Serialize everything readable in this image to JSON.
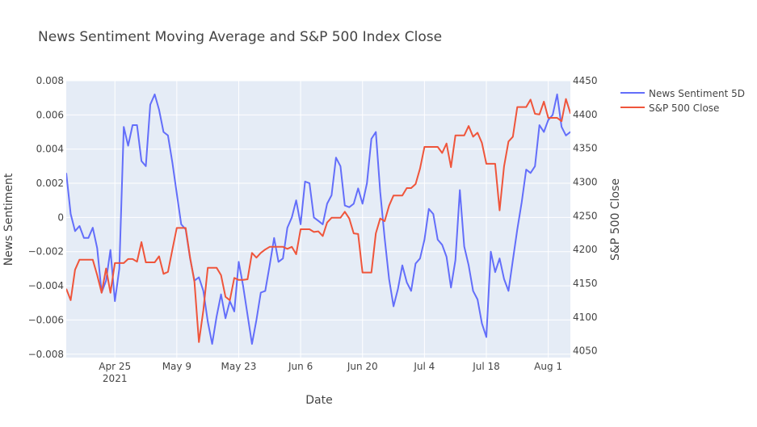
{
  "chart_data": {
    "type": "line",
    "title": "News Sentiment Moving Average and S&P 500 Index Close",
    "xlabel": "Date",
    "ylabel_left": "News Sentiment",
    "ylabel_right": "S&P 500 Close",
    "x_ticks": [
      {
        "date": "2021-04-25",
        "label": "Apr 25",
        "sublabel": "2021"
      },
      {
        "date": "2021-05-09",
        "label": "May 9",
        "sublabel": ""
      },
      {
        "date": "2021-05-23",
        "label": "May 23",
        "sublabel": ""
      },
      {
        "date": "2021-06-06",
        "label": "Jun 6",
        "sublabel": ""
      },
      {
        "date": "2021-06-20",
        "label": "Jun 20",
        "sublabel": ""
      },
      {
        "date": "2021-07-04",
        "label": "Jul 4",
        "sublabel": ""
      },
      {
        "date": "2021-07-18",
        "label": "Jul 18",
        "sublabel": ""
      },
      {
        "date": "2021-08-01",
        "label": "Aug 1",
        "sublabel": ""
      }
    ],
    "x_range": [
      "2021-04-14",
      "2021-08-06"
    ],
    "y_left_ticks": [
      0.008,
      0.006,
      0.004,
      0.002,
      0,
      -0.002,
      -0.004,
      -0.006,
      -0.008
    ],
    "y_left_tick_labels": [
      "0.008",
      "0.006",
      "0.004",
      "0.002",
      "0",
      "−0.002",
      "−0.004",
      "−0.006",
      "−0.008"
    ],
    "y_left_range": [
      -0.0082,
      0.008
    ],
    "y_right_ticks": [
      4450,
      4400,
      4350,
      4300,
      4250,
      4200,
      4150,
      4100,
      4050
    ],
    "y_right_range": [
      4040,
      4450
    ],
    "legend_position": "top-right",
    "colors": {
      "sentiment": "#636efa",
      "sp500": "#ef553b",
      "plot_bg": "#e5ecf6",
      "grid": "#ffffff"
    },
    "series": [
      {
        "name": "News Sentiment 5D",
        "axis": "left",
        "points": [
          [
            "2021-04-14",
            0.0026
          ],
          [
            "2021-04-15",
            0.0002
          ],
          [
            "2021-04-16",
            -0.0008
          ],
          [
            "2021-04-17",
            -0.0005
          ],
          [
            "2021-04-18",
            -0.0012
          ],
          [
            "2021-04-19",
            -0.0012
          ],
          [
            "2021-04-20",
            -0.0006
          ],
          [
            "2021-04-21",
            -0.0018
          ],
          [
            "2021-04-22",
            -0.0044
          ],
          [
            "2021-04-23",
            -0.0037
          ],
          [
            "2021-04-24",
            -0.0019
          ],
          [
            "2021-04-25",
            -0.0049
          ],
          [
            "2021-04-26",
            -0.003
          ],
          [
            "2021-04-27",
            0.0053
          ],
          [
            "2021-04-28",
            0.0042
          ],
          [
            "2021-04-29",
            0.0054
          ],
          [
            "2021-04-30",
            0.0054
          ],
          [
            "2021-05-01",
            0.0033
          ],
          [
            "2021-05-02",
            0.003
          ],
          [
            "2021-05-03",
            0.0066
          ],
          [
            "2021-05-04",
            0.0072
          ],
          [
            "2021-05-05",
            0.0063
          ],
          [
            "2021-05-06",
            0.005
          ],
          [
            "2021-05-07",
            0.0048
          ],
          [
            "2021-05-08",
            0.0032
          ],
          [
            "2021-05-09",
            0.0014
          ],
          [
            "2021-05-10",
            -0.0004
          ],
          [
            "2021-05-11",
            -0.0007
          ],
          [
            "2021-05-12",
            -0.0024
          ],
          [
            "2021-05-13",
            -0.0037
          ],
          [
            "2021-05-14",
            -0.0035
          ],
          [
            "2021-05-15",
            -0.0043
          ],
          [
            "2021-05-16",
            -0.0061
          ],
          [
            "2021-05-17",
            -0.0074
          ],
          [
            "2021-05-18",
            -0.0058
          ],
          [
            "2021-05-19",
            -0.0045
          ],
          [
            "2021-05-20",
            -0.0059
          ],
          [
            "2021-05-21",
            -0.0049
          ],
          [
            "2021-05-22",
            -0.0055
          ],
          [
            "2021-05-23",
            -0.0026
          ],
          [
            "2021-05-24",
            -0.004
          ],
          [
            "2021-05-25",
            -0.0057
          ],
          [
            "2021-05-26",
            -0.0074
          ],
          [
            "2021-05-27",
            -0.006
          ],
          [
            "2021-05-28",
            -0.0044
          ],
          [
            "2021-05-29",
            -0.0043
          ],
          [
            "2021-05-30",
            -0.0028
          ],
          [
            "2021-05-31",
            -0.0012
          ],
          [
            "2021-06-01",
            -0.0026
          ],
          [
            "2021-06-02",
            -0.0024
          ],
          [
            "2021-06-03",
            -0.0006
          ],
          [
            "2021-06-04",
            0.0
          ],
          [
            "2021-06-05",
            0.001
          ],
          [
            "2021-06-06",
            -0.0004
          ],
          [
            "2021-06-07",
            0.0021
          ],
          [
            "2021-06-08",
            0.002
          ],
          [
            "2021-06-09",
            0.0
          ],
          [
            "2021-06-10",
            -0.0002
          ],
          [
            "2021-06-11",
            -0.0004
          ],
          [
            "2021-06-12",
            0.0008
          ],
          [
            "2021-06-13",
            0.0013
          ],
          [
            "2021-06-14",
            0.0035
          ],
          [
            "2021-06-15",
            0.003
          ],
          [
            "2021-06-16",
            0.0007
          ],
          [
            "2021-06-17",
            0.0006
          ],
          [
            "2021-06-18",
            0.0008
          ],
          [
            "2021-06-19",
            0.0017
          ],
          [
            "2021-06-20",
            0.0008
          ],
          [
            "2021-06-21",
            0.002
          ],
          [
            "2021-06-22",
            0.0046
          ],
          [
            "2021-06-23",
            0.005
          ],
          [
            "2021-06-24",
            0.0015
          ],
          [
            "2021-06-25",
            -0.0012
          ],
          [
            "2021-06-26",
            -0.0036
          ],
          [
            "2021-06-27",
            -0.0052
          ],
          [
            "2021-06-28",
            -0.0042
          ],
          [
            "2021-06-29",
            -0.0028
          ],
          [
            "2021-06-30",
            -0.0038
          ],
          [
            "2021-07-01",
            -0.0043
          ],
          [
            "2021-07-02",
            -0.0027
          ],
          [
            "2021-07-03",
            -0.0024
          ],
          [
            "2021-07-04",
            -0.0013
          ],
          [
            "2021-07-05",
            0.0005
          ],
          [
            "2021-07-06",
            0.0002
          ],
          [
            "2021-07-07",
            -0.0013
          ],
          [
            "2021-07-08",
            -0.0016
          ],
          [
            "2021-07-09",
            -0.0023
          ],
          [
            "2021-07-10",
            -0.0041
          ],
          [
            "2021-07-11",
            -0.0025
          ],
          [
            "2021-07-12",
            0.0016
          ],
          [
            "2021-07-13",
            -0.0017
          ],
          [
            "2021-07-14",
            -0.0028
          ],
          [
            "2021-07-15",
            -0.0043
          ],
          [
            "2021-07-16",
            -0.0048
          ],
          [
            "2021-07-17",
            -0.0062
          ],
          [
            "2021-07-18",
            -0.007
          ],
          [
            "2021-07-19",
            -0.002
          ],
          [
            "2021-07-20",
            -0.0032
          ],
          [
            "2021-07-21",
            -0.0024
          ],
          [
            "2021-07-22",
            -0.0036
          ],
          [
            "2021-07-23",
            -0.0043
          ],
          [
            "2021-07-24",
            -0.0025
          ],
          [
            "2021-07-25",
            -0.0007
          ],
          [
            "2021-07-26",
            0.0009
          ],
          [
            "2021-07-27",
            0.0028
          ],
          [
            "2021-07-28",
            0.0026
          ],
          [
            "2021-07-29",
            0.003
          ],
          [
            "2021-07-30",
            0.0054
          ],
          [
            "2021-07-31",
            0.005
          ],
          [
            "2021-08-01",
            0.0057
          ],
          [
            "2021-08-02",
            0.006
          ],
          [
            "2021-08-03",
            0.0072
          ],
          [
            "2021-08-04",
            0.0053
          ],
          [
            "2021-08-05",
            0.0048
          ],
          [
            "2021-08-06",
            0.005
          ],
          [
            "2021-08-07",
            0.0047
          ],
          [
            "2021-08-08",
            0.0056
          ]
        ]
      },
      {
        "name": "S&P 500 Close",
        "axis": "right",
        "points": [
          [
            "2021-04-14",
            4142
          ],
          [
            "2021-04-15",
            4125
          ],
          [
            "2021-04-16",
            4170
          ],
          [
            "2021-04-17",
            4185
          ],
          [
            "2021-04-18",
            4185
          ],
          [
            "2021-04-19",
            4185
          ],
          [
            "2021-04-20",
            4185
          ],
          [
            "2021-04-21",
            4162
          ],
          [
            "2021-04-22",
            4136
          ],
          [
            "2021-04-23",
            4172
          ],
          [
            "2021-04-24",
            4136
          ],
          [
            "2021-04-25",
            4180
          ],
          [
            "2021-04-26",
            4180
          ],
          [
            "2021-04-27",
            4180
          ],
          [
            "2021-04-28",
            4186
          ],
          [
            "2021-04-29",
            4186
          ],
          [
            "2021-04-30",
            4182
          ],
          [
            "2021-05-01",
            4211
          ],
          [
            "2021-05-02",
            4181
          ],
          [
            "2021-05-03",
            4181
          ],
          [
            "2021-05-04",
            4181
          ],
          [
            "2021-05-05",
            4190
          ],
          [
            "2021-05-06",
            4164
          ],
          [
            "2021-05-07",
            4167
          ],
          [
            "2021-05-08",
            4200
          ],
          [
            "2021-05-09",
            4232
          ],
          [
            "2021-05-10",
            4232
          ],
          [
            "2021-05-11",
            4232
          ],
          [
            "2021-05-12",
            4188
          ],
          [
            "2021-05-13",
            4152
          ],
          [
            "2021-05-14",
            4063
          ],
          [
            "2021-05-15",
            4110
          ],
          [
            "2021-05-16",
            4173
          ],
          [
            "2021-05-17",
            4173
          ],
          [
            "2021-05-18",
            4173
          ],
          [
            "2021-05-19",
            4162
          ],
          [
            "2021-05-20",
            4130
          ],
          [
            "2021-05-21",
            4125
          ],
          [
            "2021-05-22",
            4158
          ],
          [
            "2021-05-23",
            4155
          ],
          [
            "2021-05-24",
            4155
          ],
          [
            "2021-05-25",
            4156
          ],
          [
            "2021-05-26",
            4195
          ],
          [
            "2021-05-27",
            4188
          ],
          [
            "2021-05-28",
            4195
          ],
          [
            "2021-05-29",
            4200
          ],
          [
            "2021-05-30",
            4204
          ],
          [
            "2021-05-31",
            4204
          ],
          [
            "2021-06-01",
            4204
          ],
          [
            "2021-06-02",
            4204
          ],
          [
            "2021-06-03",
            4201
          ],
          [
            "2021-06-04",
            4204
          ],
          [
            "2021-06-05",
            4193
          ],
          [
            "2021-06-06",
            4230
          ],
          [
            "2021-06-07",
            4230
          ],
          [
            "2021-06-08",
            4230
          ],
          [
            "2021-06-09",
            4226
          ],
          [
            "2021-06-10",
            4227
          ],
          [
            "2021-06-11",
            4220
          ],
          [
            "2021-06-12",
            4240
          ],
          [
            "2021-06-13",
            4247
          ],
          [
            "2021-06-14",
            4247
          ],
          [
            "2021-06-15",
            4247
          ],
          [
            "2021-06-16",
            4256
          ],
          [
            "2021-06-17",
            4246
          ],
          [
            "2021-06-18",
            4224
          ],
          [
            "2021-06-19",
            4223
          ],
          [
            "2021-06-20",
            4166
          ],
          [
            "2021-06-21",
            4166
          ],
          [
            "2021-06-22",
            4166
          ],
          [
            "2021-06-23",
            4224
          ],
          [
            "2021-06-24",
            4246
          ],
          [
            "2021-06-25",
            4242
          ],
          [
            "2021-06-26",
            4265
          ],
          [
            "2021-06-27",
            4280
          ],
          [
            "2021-06-28",
            4280
          ],
          [
            "2021-06-29",
            4280
          ],
          [
            "2021-06-30",
            4291
          ],
          [
            "2021-07-01",
            4291
          ],
          [
            "2021-07-02",
            4297
          ],
          [
            "2021-07-03",
            4320
          ],
          [
            "2021-07-04",
            4352
          ],
          [
            "2021-07-05",
            4352
          ],
          [
            "2021-07-06",
            4352
          ],
          [
            "2021-07-07",
            4352
          ],
          [
            "2021-07-08",
            4343
          ],
          [
            "2021-07-09",
            4357
          ],
          [
            "2021-07-10",
            4322
          ],
          [
            "2021-07-11",
            4369
          ],
          [
            "2021-07-12",
            4369
          ],
          [
            "2021-07-13",
            4369
          ],
          [
            "2021-07-14",
            4383
          ],
          [
            "2021-07-15",
            4367
          ],
          [
            "2021-07-16",
            4373
          ],
          [
            "2021-07-17",
            4358
          ],
          [
            "2021-07-18",
            4327
          ],
          [
            "2021-07-19",
            4327
          ],
          [
            "2021-07-20",
            4327
          ],
          [
            "2021-07-21",
            4258
          ],
          [
            "2021-07-22",
            4323
          ],
          [
            "2021-07-23",
            4360
          ],
          [
            "2021-07-24",
            4367
          ],
          [
            "2021-07-25",
            4411
          ],
          [
            "2021-07-26",
            4411
          ],
          [
            "2021-07-27",
            4411
          ],
          [
            "2021-07-28",
            4422
          ],
          [
            "2021-07-29",
            4401
          ],
          [
            "2021-07-30",
            4400
          ],
          [
            "2021-07-31",
            4419
          ],
          [
            "2021-08-01",
            4395
          ],
          [
            "2021-08-02",
            4395
          ],
          [
            "2021-08-03",
            4395
          ],
          [
            "2021-08-04",
            4390
          ],
          [
            "2021-08-05",
            4423
          ],
          [
            "2021-08-06",
            4402
          ],
          [
            "2021-08-07",
            4427
          ],
          [
            "2021-08-08",
            4433
          ],
          [
            "2021-08-09",
            4433
          ]
        ]
      }
    ]
  }
}
